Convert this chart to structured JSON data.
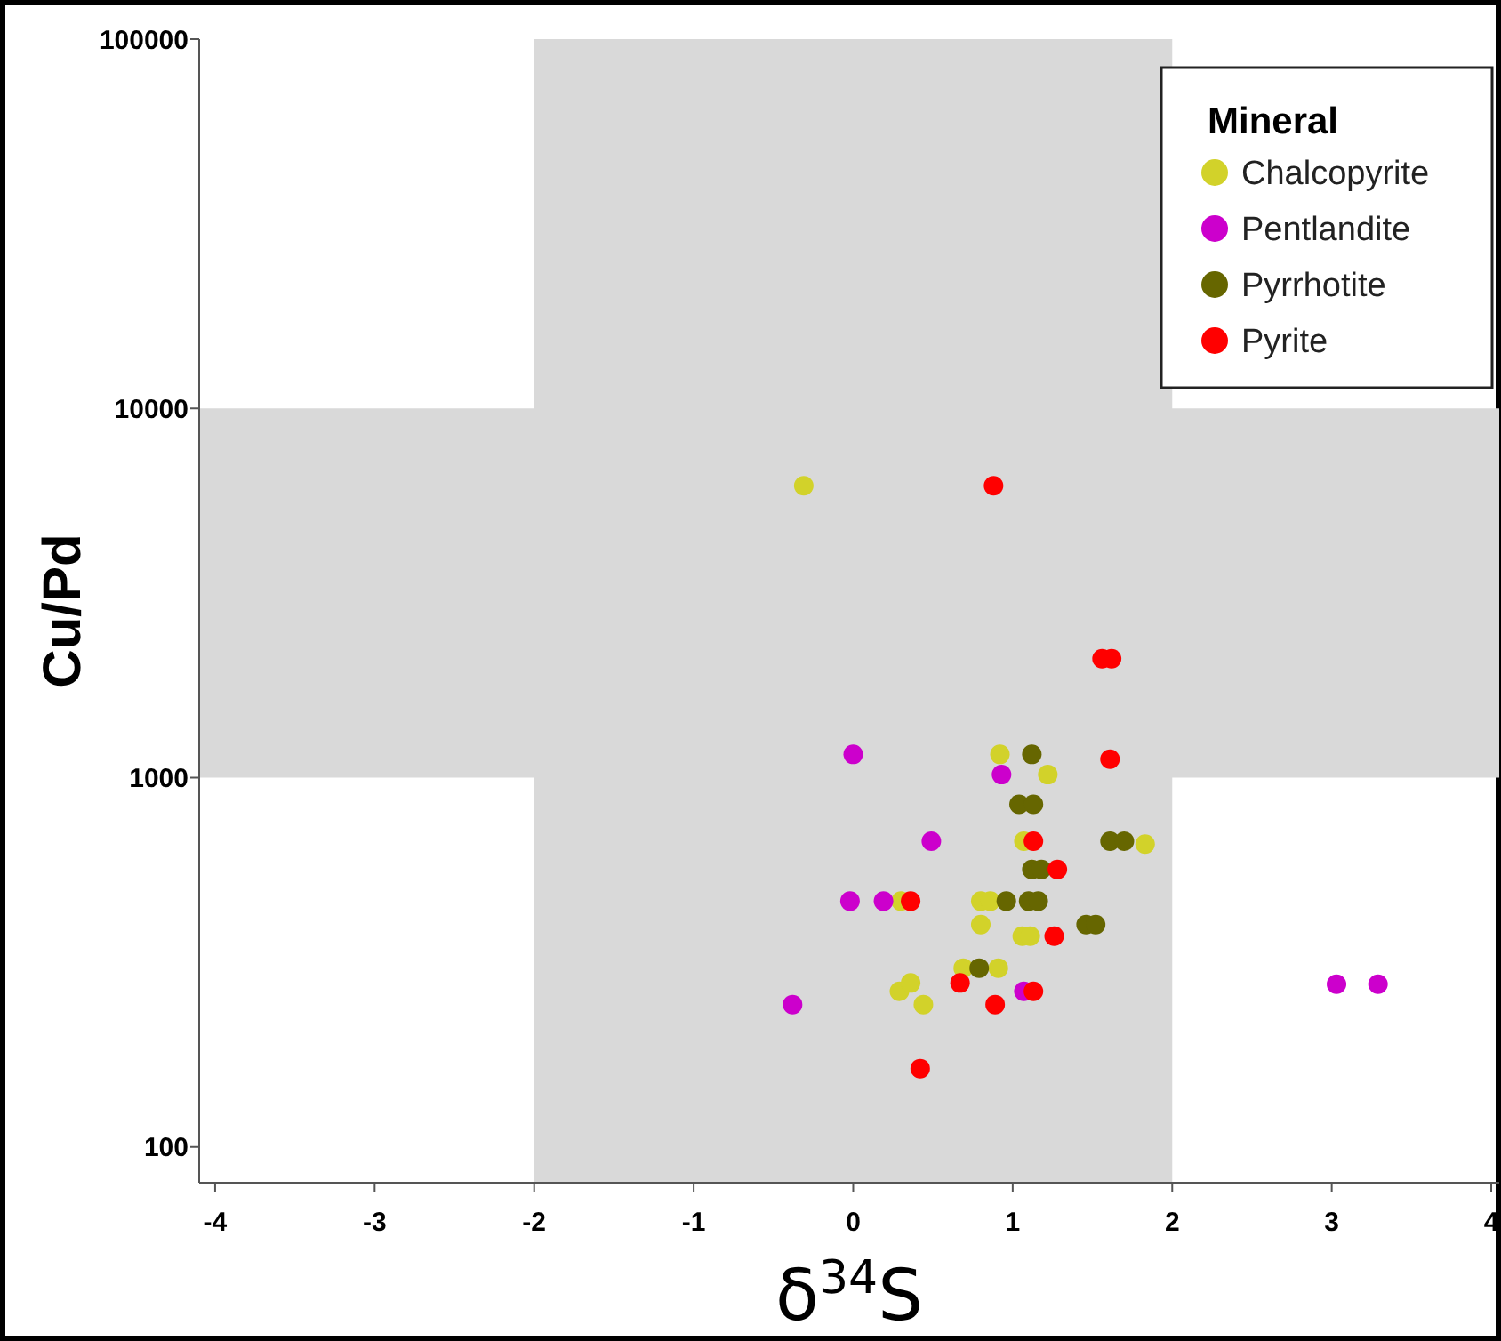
{
  "chart_data": {
    "type": "scatter",
    "xlabel": "δ$^{34}$S",
    "ylabel": "Cu/Pd",
    "legend_title": "Mineral",
    "legend": "top right",
    "marker": "circle",
    "log": "y",
    "grid": false,
    "xlim": [
      -4.1,
      4.05
    ],
    "xticks": [
      -4,
      -3,
      -2,
      -1,
      0,
      1,
      2,
      3,
      4
    ],
    "ylim": [
      80,
      100000
    ],
    "yticks": [
      100,
      1000,
      10000,
      100000
    ],
    "bands": [
      {
        "axis": "x",
        "from": -2,
        "to": 2,
        "color": "#d9d9d9"
      },
      {
        "axis": "y",
        "from": 1000,
        "to": 10000,
        "color": "#d9d9d9"
      }
    ],
    "series": [
      {
        "name": "Chalcopyrite",
        "color": "#d2d22a",
        "x": [
          -0.31,
          0.92,
          1.22,
          1.07,
          1.83,
          0.3,
          0.8,
          0.86,
          0.8,
          1.06,
          1.11,
          0.69,
          0.91,
          0.29,
          0.36,
          0.44
        ],
        "values": [
          6170,
          1156,
          1019,
          673,
          661,
          463,
          463,
          463,
          400,
          372,
          372,
          305,
          305,
          264,
          278,
          243
        ]
      },
      {
        "name": "Pentlandite",
        "color": "#cc00cc",
        "x": [
          0.0,
          0.93,
          0.49,
          -0.02,
          0.19,
          -0.38,
          1.07,
          3.03,
          3.29
        ],
        "values": [
          1156,
          1019,
          673,
          463,
          463,
          243,
          264,
          276,
          276
        ]
      },
      {
        "name": "Pyrrhotite",
        "color": "#666600",
        "x": [
          1.12,
          1.04,
          1.13,
          1.61,
          1.7,
          1.12,
          1.18,
          0.96,
          1.1,
          1.16,
          1.46,
          1.52,
          0.79
        ],
        "values": [
          1156,
          847,
          847,
          673,
          673,
          564,
          564,
          463,
          463,
          463,
          400,
          400,
          305
        ]
      },
      {
        "name": "Pyrite",
        "color": "#ff0000",
        "x": [
          0.88,
          1.56,
          1.62,
          1.61,
          1.13,
          1.28,
          0.36,
          1.26,
          0.67,
          1.13,
          0.89,
          0.42
        ],
        "values": [
          6170,
          2100,
          2100,
          1122,
          673,
          564,
          463,
          372,
          278,
          264,
          243,
          163
        ]
      }
    ]
  }
}
